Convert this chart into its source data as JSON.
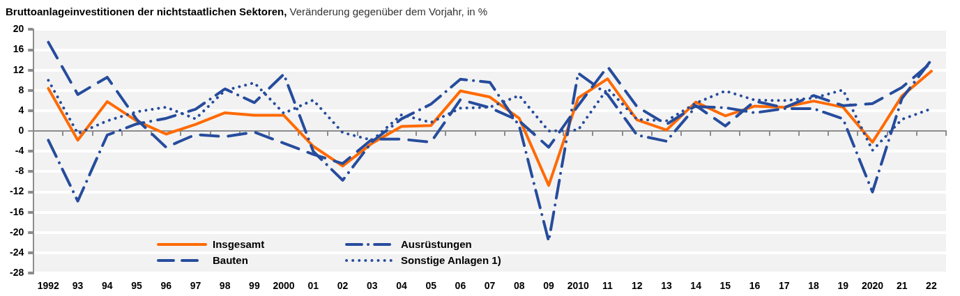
{
  "chart_data": {
    "type": "line",
    "title": "Bruttoanlageinvestitionen der nichtstaatlichen Sektoren,",
    "subtitle": "Veränderung gegenüber dem Vorjahr, in %",
    "categories": [
      "1992",
      "93",
      "94",
      "95",
      "96",
      "97",
      "98",
      "99",
      "2000",
      "01",
      "02",
      "03",
      "04",
      "05",
      "06",
      "07",
      "08",
      "09",
      "2010",
      "11",
      "12",
      "13",
      "14",
      "15",
      "16",
      "17",
      "18",
      "19",
      "2020",
      "21",
      "22"
    ],
    "series": [
      {
        "name": "Insgesamt",
        "color": "#ff6a00",
        "line_style": "solid",
        "values": [
          8.4,
          -1.8,
          5.8,
          2.0,
          -0.6,
          1.3,
          3.6,
          3.1,
          3.1,
          -3.0,
          -6.9,
          -2.4,
          0.9,
          1.1,
          7.9,
          6.7,
          2.5,
          -10.7,
          6.5,
          10.3,
          2.2,
          0.2,
          5.7,
          3.0,
          4.9,
          4.7,
          5.9,
          4.7,
          -2.2,
          6.9,
          11.8
        ]
      },
      {
        "name": "Ausrüstungen",
        "color": "#264c9c",
        "line_style": "dashdot",
        "values": [
          -1.8,
          -13.8,
          -0.8,
          1.4,
          2.5,
          4.3,
          8.3,
          5.6,
          11.2,
          -4.0,
          -9.7,
          -2.1,
          2.4,
          5.3,
          10.2,
          9.6,
          1.0,
          -21.7,
          11.4,
          7.2,
          -0.8,
          -2.0,
          4.8,
          4.6,
          3.6,
          4.4,
          4.4,
          2.4,
          -12.0,
          6.4,
          14.0
        ]
      },
      {
        "name": "Bauten",
        "color": "#264c9c",
        "line_style": "dashed",
        "values": [
          17.5,
          7.2,
          10.6,
          2.3,
          -3.2,
          -0.7,
          -1.1,
          -0.2,
          -2.4,
          -4.6,
          -6.4,
          -1.6,
          -1.6,
          -2.2,
          6.2,
          4.6,
          2.0,
          -3.2,
          5.0,
          12.7,
          4.8,
          1.3,
          5.0,
          1.0,
          5.9,
          4.6,
          7.0,
          5.0,
          5.4,
          8.6,
          13.5
        ]
      },
      {
        "name": "Sonstige Anlagen 1)",
        "color": "#264c9c",
        "line_style": "dotted",
        "values": [
          10.0,
          -0.5,
          2.0,
          3.8,
          4.7,
          2.4,
          8.0,
          9.5,
          3.5,
          6.1,
          -0.3,
          -1.8,
          3.2,
          1.7,
          4.5,
          4.7,
          7.0,
          0.0,
          0.2,
          8.4,
          2.3,
          2.0,
          5.5,
          7.9,
          6.1,
          6.0,
          6.5,
          8.1,
          -3.8,
          2.3,
          4.4
        ]
      }
    ],
    "ylim": [
      -28,
      20
    ],
    "yticks": [
      -28,
      -24,
      -20,
      -16,
      -12,
      -8,
      -4,
      0,
      4,
      8,
      12,
      16,
      20
    ],
    "grid": "y",
    "legend": "bottom",
    "marker": "none"
  }
}
